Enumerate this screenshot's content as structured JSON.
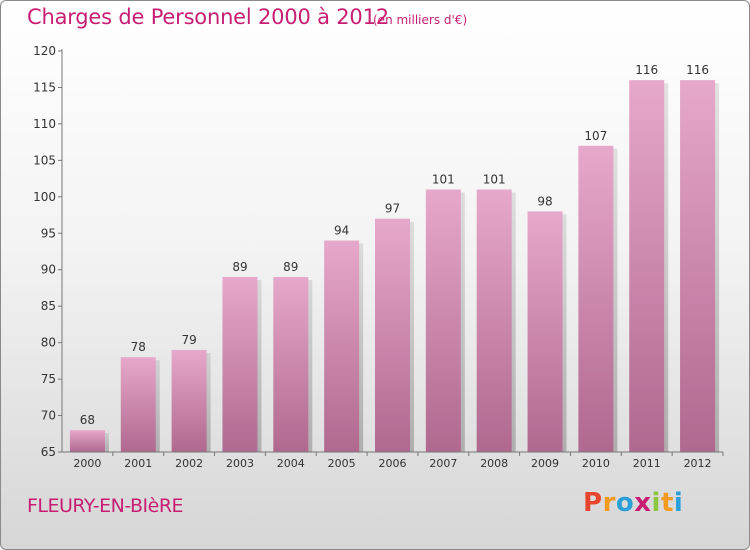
{
  "header": {
    "title": "Charges de Personnel 2000 à 2012",
    "subtitle": "(en milliers d'€)"
  },
  "footer": {
    "city": "FLEURY-EN-BIèRE",
    "logo_letters": [
      "P",
      "r",
      "o",
      "x",
      "i",
      "t",
      "i"
    ],
    "logo_colors": [
      "#e8452e",
      "#f39a1f",
      "#2b9fd8",
      "#c71e73",
      "#8cc63e",
      "#f39a1f",
      "#2b9fd8"
    ]
  },
  "colors": {
    "bar_top": "#e6a8cb",
    "bar_bottom": "#b0688f",
    "text": "#333333",
    "accent": "#c71e73"
  },
  "chart_data": {
    "type": "bar",
    "title": "Charges de Personnel 2000 à 2012",
    "subtitle": "(en milliers d'€)",
    "categories": [
      "2000",
      "2001",
      "2002",
      "2003",
      "2004",
      "2005",
      "2006",
      "2007",
      "2008",
      "2009",
      "2010",
      "2011",
      "2012"
    ],
    "values": [
      68,
      78,
      79,
      89,
      89,
      94,
      97,
      101,
      101,
      98,
      107,
      116,
      116
    ],
    "ylim": [
      65,
      120
    ],
    "yticks": [
      65,
      70,
      75,
      80,
      85,
      90,
      95,
      100,
      105,
      110,
      115,
      120
    ],
    "grid": false,
    "legend": "none"
  }
}
